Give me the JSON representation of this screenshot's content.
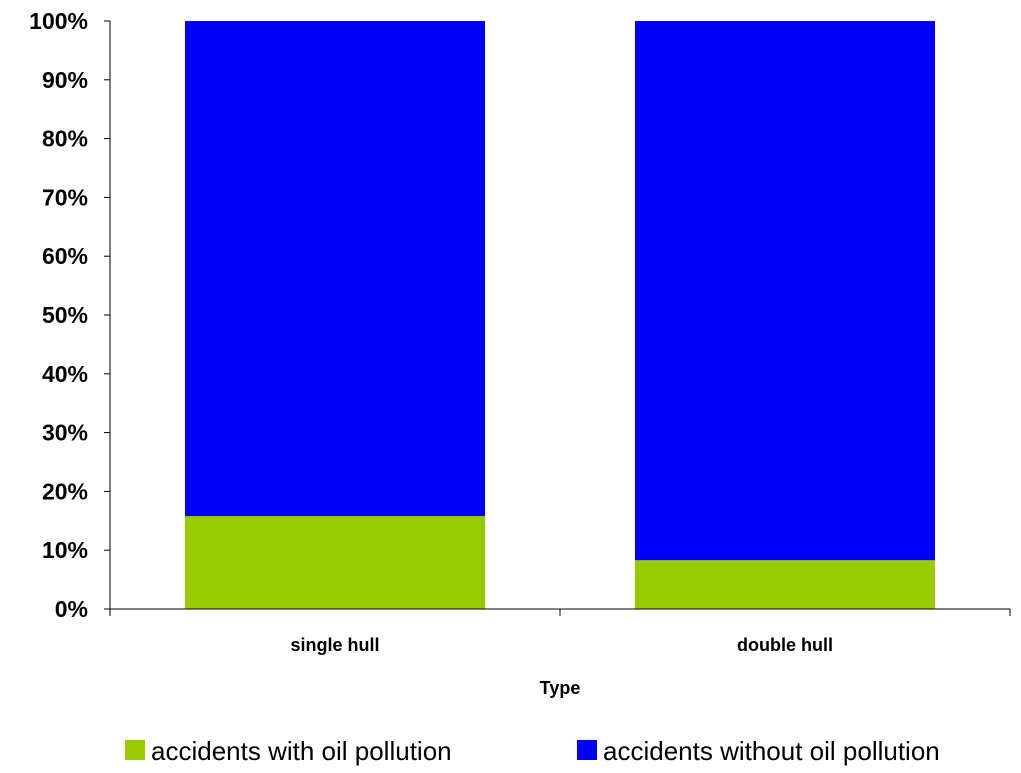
{
  "chart_data": {
    "type": "bar",
    "stacked": true,
    "categories": [
      "single hull",
      "double hull"
    ],
    "series": [
      {
        "name": "accidents with oil pollution",
        "color": "#99cc00",
        "values": [
          15.8,
          8.3
        ]
      },
      {
        "name": "accidents without oil pollution",
        "color": "#0000ff",
        "values": [
          84.2,
          91.7
        ]
      }
    ],
    "xlabel": "Type",
    "ylabel": "",
    "ylim": [
      0,
      100
    ],
    "yticks": [
      "0%",
      "10%",
      "20%",
      "30%",
      "40%",
      "50%",
      "60%",
      "70%",
      "80%",
      "90%",
      "100%"
    ],
    "grid": false,
    "legend_position": "bottom"
  }
}
